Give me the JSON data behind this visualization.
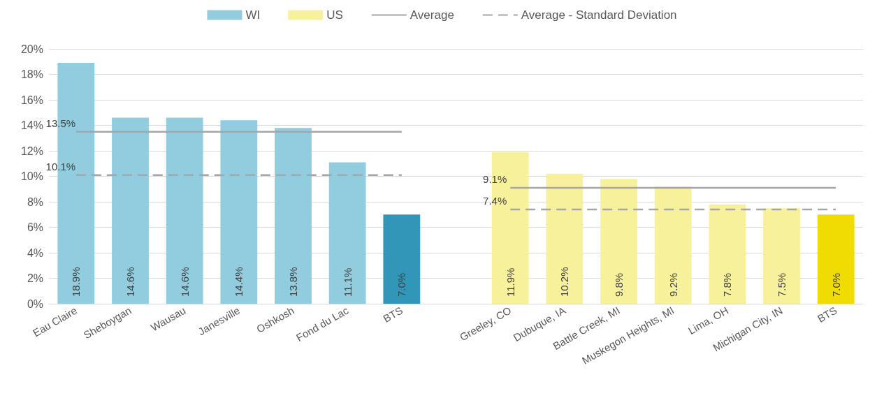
{
  "chart_data": {
    "type": "bar",
    "categories": [
      "Eau Claire",
      "Sheboygan",
      "Wausau",
      "Janesville",
      "Oshkosh",
      "Fond du Lac",
      "BTS",
      null,
      "Greeley, CO",
      "Dubuque, IA",
      "Battle Creek, MI",
      "Muskegon Heights, MI",
      "Lima, OH",
      "Michigan City, IN",
      "BTS"
    ],
    "series": [
      {
        "name": "WI",
        "color": "#92cddf",
        "colors": [
          "#92cddf",
          "#92cddf",
          "#92cddf",
          "#92cddf",
          "#92cddf",
          "#92cddf",
          "#3296b9",
          null,
          null,
          null,
          null,
          null,
          null,
          null,
          null
        ],
        "values": [
          18.9,
          14.6,
          14.6,
          14.4,
          13.8,
          11.1,
          7.0,
          null,
          null,
          null,
          null,
          null,
          null,
          null,
          null
        ],
        "value_labels": [
          "18.9%",
          "14.6%",
          "14.6%",
          "14.4%",
          "13.8%",
          "11.1%",
          "7.0%",
          null,
          null,
          null,
          null,
          null,
          null,
          null,
          null
        ]
      },
      {
        "name": "US",
        "color": "#f8f19c",
        "colors": [
          null,
          null,
          null,
          null,
          null,
          null,
          null,
          null,
          "#f8f19c",
          "#f8f19c",
          "#f8f19c",
          "#f8f19c",
          "#f8f19c",
          "#f8f19c",
          "#f0dc00"
        ],
        "values": [
          null,
          null,
          null,
          null,
          null,
          null,
          null,
          null,
          11.9,
          10.2,
          9.8,
          9.2,
          7.8,
          7.5,
          7.0
        ],
        "value_labels": [
          null,
          null,
          null,
          null,
          null,
          null,
          null,
          null,
          "11.9%",
          "10.2%",
          "9.8%",
          "9.2%",
          "7.8%",
          "7.5%",
          "7.0%"
        ]
      },
      {
        "name": "Average",
        "type": "line",
        "color": "#a6a6a6",
        "line_style": "solid",
        "values": [
          13.5,
          13.5,
          13.5,
          13.5,
          13.5,
          13.5,
          13.5,
          null,
          9.1,
          9.1,
          9.1,
          9.1,
          9.1,
          9.1,
          9.1
        ],
        "value_labels": [
          "13.5%",
          null,
          null,
          null,
          null,
          null,
          null,
          null,
          "9.1%",
          null,
          null,
          null,
          null,
          null,
          null
        ]
      },
      {
        "name": "Average - Standard Deviation",
        "type": "line",
        "color": "#a6a6a6",
        "line_style": "dashed",
        "values": [
          10.1,
          10.1,
          10.1,
          10.1,
          10.1,
          10.1,
          10.1,
          null,
          7.4,
          7.4,
          7.4,
          7.4,
          7.4,
          7.4,
          7.4
        ],
        "value_labels": [
          "10.1%",
          null,
          null,
          null,
          null,
          null,
          null,
          null,
          "7.4%",
          null,
          null,
          null,
          null,
          null,
          null
        ]
      }
    ],
    "ylim": [
      0,
      20
    ],
    "yticks": [
      {
        "value": 0,
        "label": "0%"
      },
      {
        "value": 2,
        "label": "2%"
      },
      {
        "value": 4,
        "label": "4%"
      },
      {
        "value": 6,
        "label": "6%"
      },
      {
        "value": 8,
        "label": "8%"
      },
      {
        "value": 10,
        "label": "10%"
      },
      {
        "value": 12,
        "label": "12%"
      },
      {
        "value": 14,
        "label": "14%"
      },
      {
        "value": 16,
        "label": "16%"
      },
      {
        "value": 18,
        "label": "18%"
      },
      {
        "value": 20,
        "label": "20%"
      }
    ],
    "grid": "y",
    "legend": "top",
    "marker": "none"
  }
}
